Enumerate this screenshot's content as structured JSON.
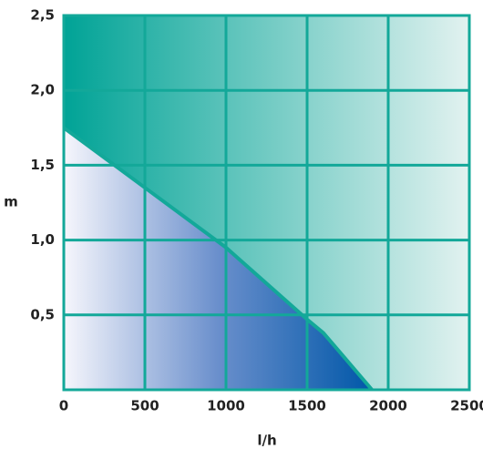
{
  "chart_data": {
    "type": "area",
    "x_label": "l/h",
    "y_label": "m",
    "x": [
      0,
      500,
      1000,
      1500,
      1600,
      1900
    ],
    "values": [
      1.75,
      1.35,
      0.95,
      0.47,
      0.38,
      0
    ],
    "color": "#13a899",
    "xlim": [
      0,
      2500
    ],
    "xticks": [
      0,
      500,
      1000,
      1500,
      2000,
      2500
    ],
    "ylim": [
      0,
      2.5
    ],
    "yticks": [
      {
        "value": 0.5,
        "label": "0,5"
      },
      {
        "value": 1.0,
        "label": "1,0"
      },
      {
        "value": 1.5,
        "label": "1,5"
      },
      {
        "value": 2.0,
        "label": "2,0"
      },
      {
        "value": 2.5,
        "label": "2,5"
      }
    ],
    "grid": true
  }
}
